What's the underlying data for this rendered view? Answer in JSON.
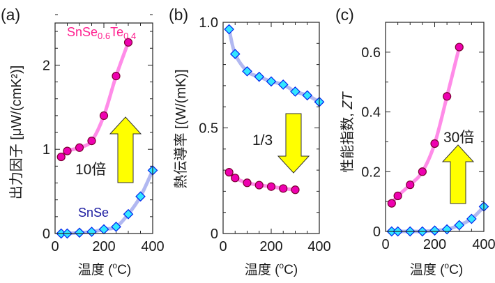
{
  "chart_data": [
    {
      "type": "line",
      "panel_label": "(a)",
      "ylabel": "出力因子 [μW/(cmK²)]",
      "ylabel_italic": "",
      "xlabel_pre": "温度 (",
      "xlabel_sup": "o",
      "xlabel_post": "C)",
      "xlim": [
        0,
        400
      ],
      "ylim": [
        0,
        2.5
      ],
      "xticks": [
        0,
        200,
        400
      ],
      "xtick_labels": [
        "0",
        "200",
        "400"
      ],
      "xminor": 50,
      "yticks": [
        0,
        1,
        2
      ],
      "ytick_labels": [
        "0",
        "1",
        "2"
      ],
      "yminor": 0.2,
      "annotation": "10倍",
      "arrow": "up",
      "series": [
        {
          "name": "SnSe0.6Te0.4",
          "marker": "circle",
          "x": [
            25,
            50,
            100,
            150,
            200,
            250,
            300
          ],
          "y": [
            0.91,
            0.98,
            1.02,
            1.1,
            1.4,
            1.87,
            2.27
          ]
        },
        {
          "name": "SnSe",
          "marker": "diamond",
          "x": [
            25,
            50,
            100,
            150,
            200,
            250,
            300,
            350,
            400
          ],
          "y": [
            0,
            0,
            0.01,
            0.02,
            0.05,
            0.08,
            0.23,
            0.44,
            0.75
          ]
        }
      ]
    },
    {
      "type": "line",
      "panel_label": "(b)",
      "ylabel": "熱伝導率 [(W/(mK)]",
      "ylabel_italic": "",
      "xlabel_pre": "温度 (",
      "xlabel_sup": "o",
      "xlabel_post": "C)",
      "xlim": [
        0,
        400
      ],
      "ylim": [
        0,
        1.0
      ],
      "xticks": [
        0,
        200,
        400
      ],
      "xtick_labels": [
        "0",
        "200",
        "400"
      ],
      "xminor": 50,
      "yticks": [
        0,
        0.5,
        1.0
      ],
      "ytick_labels": [
        "0",
        "0.5",
        "1.0"
      ],
      "yminor": 0.1,
      "annotation": "1/3",
      "arrow": "down",
      "series": [
        {
          "marker": "circle",
          "x": [
            25,
            50,
            100,
            150,
            200,
            250,
            300
          ],
          "y": [
            0.29,
            0.263,
            0.24,
            0.229,
            0.222,
            0.213,
            0.207
          ]
        },
        {
          "marker": "diamond",
          "x": [
            25,
            50,
            100,
            150,
            200,
            250,
            300,
            350,
            400
          ],
          "y": [
            0.967,
            0.85,
            0.768,
            0.742,
            0.72,
            0.705,
            0.672,
            0.654,
            0.623
          ]
        }
      ]
    },
    {
      "type": "line",
      "panel_label": "(c)",
      "ylabel": "性能指数, ",
      "ylabel_italic": "ZT",
      "xlabel_pre": "温度 (",
      "xlabel_sup": "o",
      "xlabel_post": "C)",
      "xlim": [
        0,
        400
      ],
      "ylim": [
        0,
        0.7
      ],
      "xticks": [
        0,
        200,
        400
      ],
      "xtick_labels": [
        "0",
        "200",
        "400"
      ],
      "xminor": 50,
      "yticks": [
        0,
        0.2,
        0.4,
        0.6
      ],
      "ytick_labels": [
        "0",
        "0.2",
        "0.4",
        "0.6"
      ],
      "yminor": 0.1,
      "annotation": "30倍",
      "arrow": "up",
      "series": [
        {
          "marker": "circle",
          "x": [
            25,
            50,
            100,
            150,
            200,
            250,
            300
          ],
          "y": [
            0.094,
            0.119,
            0.156,
            0.2,
            0.294,
            0.452,
            0.617
          ]
        },
        {
          "marker": "diamond",
          "x": [
            25,
            50,
            100,
            150,
            200,
            250,
            300,
            350,
            400
          ],
          "y": [
            0,
            0,
            0,
            0,
            0.003,
            0.007,
            0.021,
            0.042,
            0.083
          ]
        }
      ]
    }
  ],
  "colors": {
    "circle_fill": "#ee00b0",
    "circle_stroke": "#7a0030",
    "circle_line": "#ff7fe6",
    "diamond_fill": "#33e6ff",
    "diamond_stroke": "#0022ee",
    "diamond_line": "#a8b0f0",
    "label_pink": "#ff1f8f",
    "label_blue": "#1a1aa0",
    "arrow_fill": "#ffff00",
    "arrow_stroke": "#333333"
  }
}
